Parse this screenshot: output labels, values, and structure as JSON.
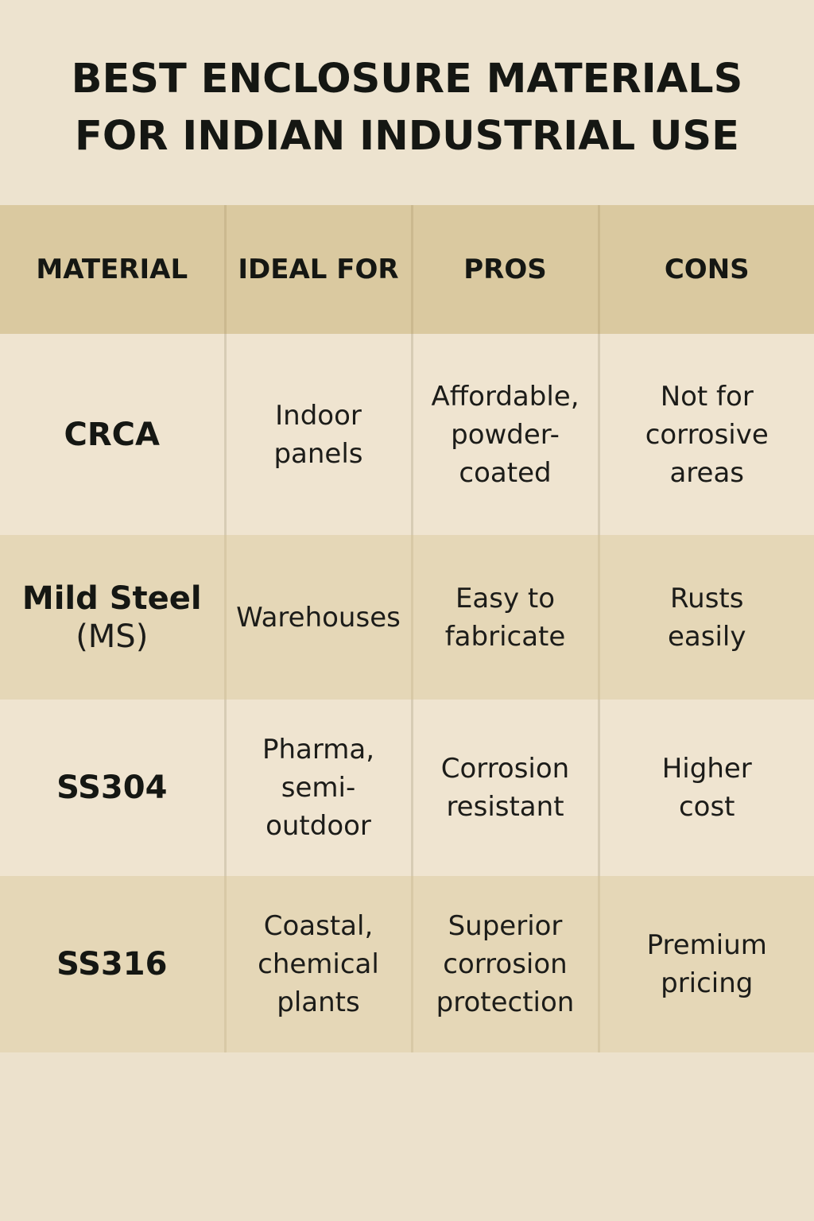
{
  "title": {
    "line1": "BEST ENCLOSURE MATERIALS",
    "line2": "FOR INDIAN INDUSTRIAL USE"
  },
  "table": {
    "headers": [
      "MATERIAL",
      "IDEAL FOR",
      "PROS",
      "CONS"
    ],
    "rows": [
      {
        "material": "CRCA",
        "material_sub": "",
        "ideal_for": "Indoor panels",
        "pros": "Affordable, powder-coated",
        "cons": "Not for corrosive areas"
      },
      {
        "material": "Mild Steel",
        "material_sub": "(MS)",
        "ideal_for": "Warehouses",
        "pros": "Easy to fabricate",
        "cons": "Rusts easily"
      },
      {
        "material": "SS304",
        "material_sub": "",
        "ideal_for": "Pharma, semi-outdoor",
        "pros": "Corrosion resistant",
        "cons": "Higher cost"
      },
      {
        "material": "SS316",
        "material_sub": "",
        "ideal_for": "Coastal, chemical plants",
        "pros": "Superior corrosion protection",
        "cons": "Premium pricing"
      }
    ]
  },
  "colors": {
    "background": "#ede2cd",
    "header_band": "#dac9a0",
    "row_light": "#efe4d0",
    "row_dark": "#e5d7b7",
    "text": "#151713"
  }
}
